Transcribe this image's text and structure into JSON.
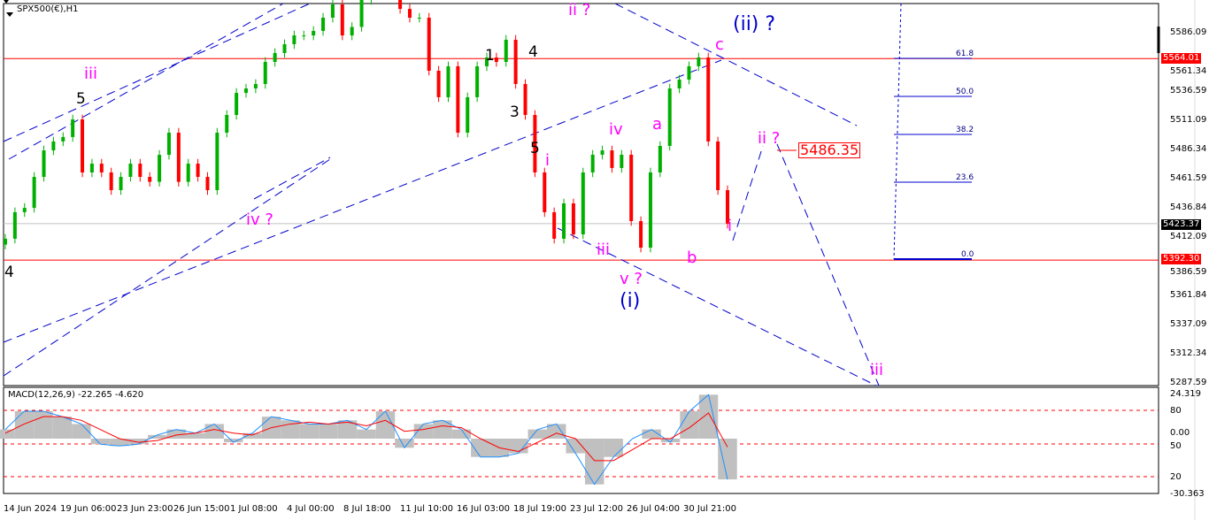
{
  "header": {
    "title": "SPX500(€),H1",
    "dropdown_icon": "triangle-down-icon"
  },
  "indicator": {
    "label": "MACD(12,26,9) -22.265 -4.620"
  },
  "price_axis": [
    "5586.09",
    "5561.34",
    "5536.59",
    "5511.09",
    "5486.34",
    "5461.59",
    "5436.84",
    "5412.09",
    "5386.59",
    "5361.84",
    "5337.09",
    "5312.34",
    "5287.59"
  ],
  "price_tags": {
    "resistance": "5564.01",
    "current": "5423.37",
    "support": "5392.30"
  },
  "indicator_axis": [
    "24.319",
    "80",
    "0.00",
    "50",
    "20",
    "-30.363"
  ],
  "time_axis": [
    "14 Jun 2024",
    "19 Jun 06:00",
    "23 Jun 23:00",
    "26 Jun 15:00",
    "1 Jul 08:00",
    "4 Jul 00:00",
    "8 Jul 18:00",
    "11 Jul 10:00",
    "16 Jul 03:00",
    "18 Jul 19:00",
    "23 Jul 12:00",
    "26 Jul 04:00",
    "30 Jul 21:00"
  ],
  "fib_levels": [
    "61.8",
    "50.0",
    "38.2",
    "23.6",
    "0.0"
  ],
  "target_box": "5486.35",
  "annotations": {
    "iii_left": "iii",
    "five_left": "5",
    "four_left": "4",
    "iv_q": "iv ?",
    "one": "1",
    "four_mid": "4",
    "three": "3",
    "five_mid": "5",
    "i_mid": "i",
    "ii_q_top": "ii ?",
    "iv": "iv",
    "a": "a",
    "iii_mid": "iii",
    "v_q": "v ?",
    "wave_i": "(i)",
    "b": "b",
    "c": "c",
    "wave_ii_q": "(ii) ?",
    "i_right": "i",
    "ii_q_right": "ii ?",
    "iii_right": "iii"
  },
  "colors": {
    "up": "#00b000",
    "down": "#ff0000",
    "levels": "#ff0000",
    "trendlines": "#0000cc",
    "labels": "#ff00ff",
    "macd_hist": "#c0c0c0",
    "signal": "#ff0000",
    "osc": "#1e90ff"
  },
  "chart_data": {
    "type": "candlestick",
    "symbol": "SPX500(€)",
    "timeframe": "H1",
    "ylim": [
      5287.59,
      5586.09
    ],
    "closes": [
      5410.5,
      5433.1,
      5436.8,
      5463.2,
      5485.8,
      5493.4,
      5497.2,
      5512.2,
      5467.0,
      5474.5,
      5467.0,
      5451.9,
      5463.2,
      5474.5,
      5463.2,
      5459.0,
      5482.0,
      5500.9,
      5459.0,
      5474.5,
      5463.2,
      5451.9,
      5500.9,
      5516.0,
      5534.8,
      5538.6,
      5542.4,
      5561.2,
      5568.8,
      5576.3,
      5583.8,
      5583.8,
      5587.6,
      5598.9,
      5610.2,
      5583.8,
      5591.0,
      5614.0,
      5620.0,
      5625.0,
      5618.0,
      5606.4,
      5598.9,
      5598.9,
      5553.7,
      5531.1,
      5557.5,
      5500.9,
      5531.1,
      5557.5,
      5565.0,
      5561.2,
      5580.1,
      5542.4,
      5516.0,
      5467.0,
      5433.1,
      5410.5,
      5440.6,
      5414.2,
      5467.0,
      5482.1,
      5485.8,
      5470.8,
      5482.1,
      5425.5,
      5402.9,
      5467.0,
      5489.6,
      5538.6,
      5546.1,
      5557.5,
      5565.0,
      5493.4,
      5451.9,
      5423.37
    ],
    "horizontal_levels": [
      5564.01,
      5392.3,
      5423.37
    ],
    "macd": {
      "params": "12,26,9",
      "ylim": [
        -30.363,
        24.319
      ],
      "main": [
        5,
        15,
        15,
        12,
        8,
        -3,
        -4,
        -3,
        2,
        5,
        3,
        8,
        -2,
        3,
        12,
        10,
        8,
        8,
        10,
        5,
        15,
        -5,
        8,
        10,
        5,
        -10,
        -10,
        -8,
        5,
        8,
        -8,
        -25,
        -10,
        0,
        5,
        -2,
        15,
        24,
        -22.265
      ],
      "signal": [
        3,
        8,
        12,
        12,
        10,
        5,
        0,
        -2,
        -1,
        2,
        3,
        5,
        3,
        2,
        6,
        8,
        9,
        8,
        9,
        7,
        10,
        4,
        5,
        7,
        6,
        0,
        -5,
        -7,
        -2,
        3,
        0,
        -12,
        -12,
        -6,
        0,
        0,
        6,
        14,
        -4.62
      ]
    }
  }
}
